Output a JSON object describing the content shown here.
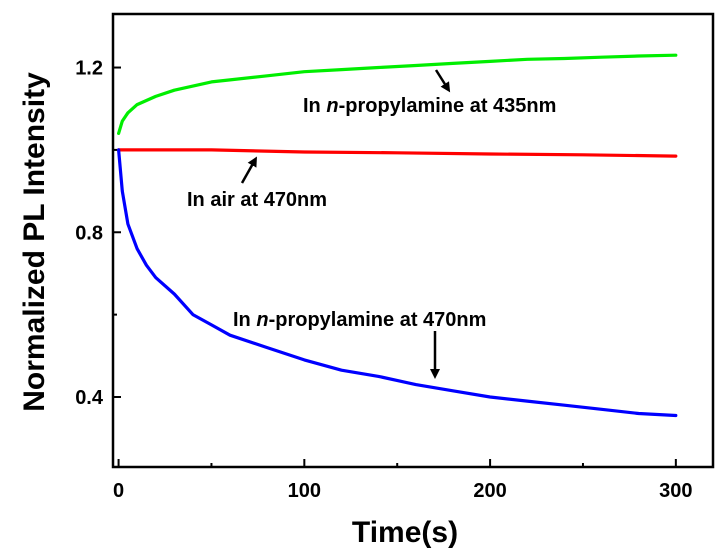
{
  "chart_data": {
    "type": "line",
    "xlabel": "Time(s)",
    "ylabel": "Normalized PL Intensity",
    "xlim": [
      -3,
      320
    ],
    "ylim": [
      0.23,
      1.33
    ],
    "x_ticks": [
      0,
      100,
      200,
      300
    ],
    "x_tick_labels": [
      "0",
      "100",
      "200",
      "300"
    ],
    "y_ticks": [
      0.4,
      0.8,
      1.2
    ],
    "y_tick_labels": [
      "0.4",
      "0.8",
      "1.2"
    ],
    "grid": false,
    "legend": "none",
    "series": [
      {
        "color": "#00ee00",
        "x": [
          0,
          2,
          5,
          10,
          15,
          20,
          30,
          40,
          50,
          60,
          80,
          100,
          120,
          140,
          160,
          180,
          200,
          220,
          240,
          260,
          280,
          300
        ],
        "y": [
          1.04,
          1.07,
          1.09,
          1.11,
          1.12,
          1.13,
          1.145,
          1.155,
          1.165,
          1.17,
          1.18,
          1.19,
          1.195,
          1.2,
          1.205,
          1.21,
          1.215,
          1.22,
          1.222,
          1.225,
          1.228,
          1.23
        ]
      },
      {
        "color": "#ff0000",
        "x": [
          0,
          50,
          100,
          150,
          200,
          250,
          300
        ],
        "y": [
          1.0,
          1.0,
          0.995,
          0.993,
          0.99,
          0.988,
          0.985
        ]
      },
      {
        "color": "#0000ff",
        "x": [
          0,
          2,
          5,
          10,
          15,
          20,
          30,
          40,
          50,
          60,
          80,
          100,
          120,
          140,
          160,
          180,
          200,
          220,
          240,
          260,
          280,
          300
        ],
        "y": [
          1.0,
          0.9,
          0.82,
          0.76,
          0.72,
          0.69,
          0.65,
          0.6,
          0.575,
          0.55,
          0.52,
          0.49,
          0.465,
          0.45,
          0.43,
          0.415,
          0.4,
          0.39,
          0.38,
          0.37,
          0.36,
          0.355
        ]
      }
    ],
    "annotations": [
      {
        "parts": [
          {
            "text": "In ",
            "italic": false
          },
          {
            "text": "n",
            "italic": true
          },
          {
            "text": "-propylamine at 435nm",
            "italic": false
          }
        ]
      },
      {
        "parts": [
          {
            "text": "In air at 470nm",
            "italic": false
          }
        ]
      },
      {
        "parts": [
          {
            "text": "In ",
            "italic": false
          },
          {
            "text": "n",
            "italic": true
          },
          {
            "text": "-propylamine at 470nm",
            "italic": false
          }
        ]
      }
    ]
  }
}
